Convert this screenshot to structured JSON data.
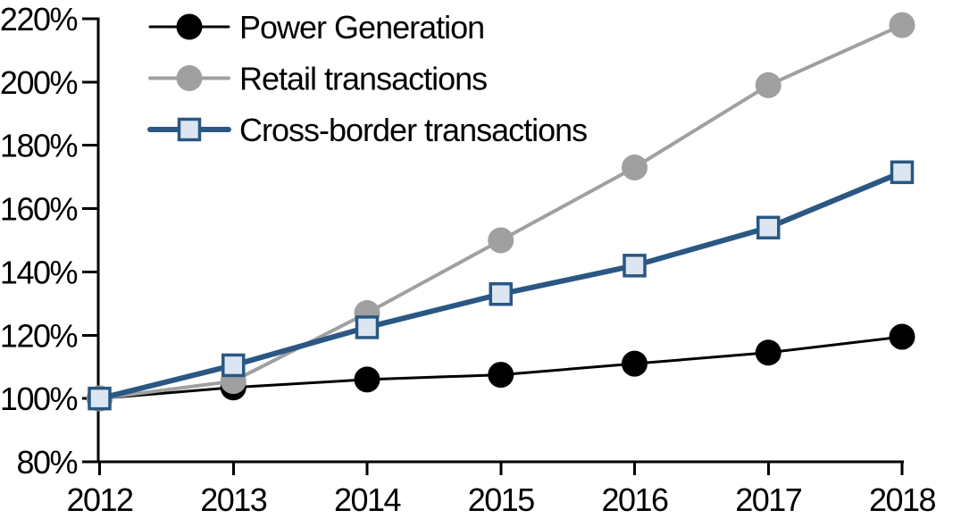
{
  "chart_data": {
    "type": "line",
    "title": "",
    "xlabel": "",
    "ylabel": "",
    "x_categories": [
      "2012",
      "2013",
      "2014",
      "2015",
      "2016",
      "2017",
      "2018"
    ],
    "y_axis": {
      "min": 80,
      "max": 220,
      "step": 20,
      "tick_labels": [
        "80%",
        "100%",
        "120%",
        "140%",
        "160%",
        "180%",
        "200%",
        "220%"
      ]
    },
    "grid": false,
    "legend_position": "top-left-inside",
    "axis_color": "#000000",
    "background_color": "#ffffff",
    "series": [
      {
        "name": "Power Generation",
        "color": "#000000",
        "marker": "circle",
        "marker_fill": "#000000",
        "values": [
          100,
          103.5,
          106,
          107.5,
          111,
          114.5,
          119.5
        ]
      },
      {
        "name": "Retail transactions",
        "color": "#a0a0a0",
        "marker": "circle",
        "marker_fill": "#a0a0a0",
        "values": [
          100,
          105.5,
          127,
          150,
          173,
          199,
          218
        ]
      },
      {
        "name": "Cross-border transactions",
        "color": "#2a5783",
        "marker": "square",
        "marker_fill": "#dce6f2",
        "values": [
          100,
          110.5,
          122.5,
          133,
          142,
          154,
          171.5
        ]
      }
    ]
  }
}
